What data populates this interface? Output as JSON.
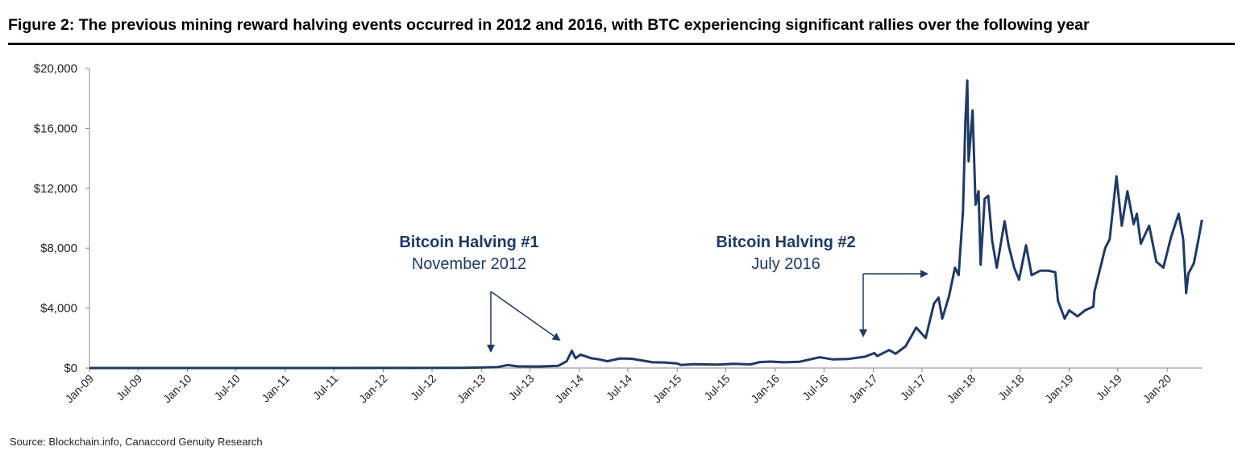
{
  "figure": {
    "title": "Figure 2: The previous mining reward halving events occurred in 2012 and 2016, with BTC experiencing significant rallies over the following year",
    "source": "Source: Blockchain.info, Canaccord Genuity Research"
  },
  "annotations": [
    {
      "title": "Bitcoin Halving #1",
      "subtitle": "November 2012"
    },
    {
      "title": "Bitcoin Halving #2",
      "subtitle": "July 2016"
    }
  ],
  "chart_data": {
    "type": "line",
    "title": "",
    "xlabel": "",
    "ylabel": "",
    "ylim": [
      0,
      20000
    ],
    "yticks": [
      0,
      4000,
      8000,
      12000,
      16000,
      20000
    ],
    "ytick_labels": [
      "$0",
      "$4,000",
      "$8,000",
      "$12,000",
      "$16,000",
      "$20,000"
    ],
    "xticks": [
      "Jan-09",
      "Jul-09",
      "Jan-10",
      "Jul-10",
      "Jan-11",
      "Jul-11",
      "Jan-12",
      "Jul-12",
      "Jan-13",
      "Jul-13",
      "Jan-14",
      "Jul-14",
      "Jan-15",
      "Jul-15",
      "Jan-16",
      "Jul-16",
      "Jan-17",
      "Jul-17",
      "Jan-18",
      "Jul-18",
      "Jan-19",
      "Jul-19",
      "Jan-20"
    ],
    "grid": false,
    "legend": "none",
    "line_color": "#1f3a63",
    "series": [
      {
        "points": [
          [
            "2009-01-01",
            0
          ],
          [
            "2010-01-01",
            0
          ],
          [
            "2011-01-01",
            0
          ],
          [
            "2012-01-01",
            5
          ],
          [
            "2012-11-01",
            11
          ],
          [
            "2013-03-01",
            60
          ],
          [
            "2013-04-10",
            200
          ],
          [
            "2013-05-15",
            115
          ],
          [
            "2013-08-01",
            100
          ],
          [
            "2013-10-15",
            150
          ],
          [
            "2013-11-15",
            450
          ],
          [
            "2013-12-04",
            1150
          ],
          [
            "2013-12-18",
            650
          ],
          [
            "2014-01-05",
            900
          ],
          [
            "2014-02-15",
            650
          ],
          [
            "2014-03-15",
            580
          ],
          [
            "2014-04-15",
            450
          ],
          [
            "2014-06-01",
            640
          ],
          [
            "2014-07-15",
            620
          ],
          [
            "2014-09-01",
            480
          ],
          [
            "2014-10-01",
            380
          ],
          [
            "2014-11-15",
            370
          ],
          [
            "2015-01-01",
            300
          ],
          [
            "2015-01-15",
            200
          ],
          [
            "2015-03-01",
            260
          ],
          [
            "2015-06-01",
            230
          ],
          [
            "2015-08-01",
            280
          ],
          [
            "2015-10-01",
            240
          ],
          [
            "2015-11-05",
            400
          ],
          [
            "2015-12-15",
            430
          ],
          [
            "2016-02-01",
            380
          ],
          [
            "2016-04-01",
            420
          ],
          [
            "2016-06-15",
            720
          ],
          [
            "2016-08-01",
            580
          ],
          [
            "2016-10-01",
            610
          ],
          [
            "2016-12-01",
            760
          ],
          [
            "2017-01-05",
            1000
          ],
          [
            "2017-01-15",
            800
          ],
          [
            "2017-03-01",
            1200
          ],
          [
            "2017-03-25",
            950
          ],
          [
            "2017-05-01",
            1450
          ],
          [
            "2017-06-10",
            2700
          ],
          [
            "2017-07-15",
            2000
          ],
          [
            "2017-08-15",
            4300
          ],
          [
            "2017-09-01",
            4700
          ],
          [
            "2017-09-15",
            3300
          ],
          [
            "2017-10-10",
            4800
          ],
          [
            "2017-11-01",
            6700
          ],
          [
            "2017-11-15",
            6200
          ],
          [
            "2017-12-01",
            10500
          ],
          [
            "2017-12-10",
            16500
          ],
          [
            "2017-12-17",
            19200
          ],
          [
            "2017-12-22",
            13800
          ],
          [
            "2018-01-06",
            17200
          ],
          [
            "2018-01-17",
            10900
          ],
          [
            "2018-01-28",
            11800
          ],
          [
            "2018-02-05",
            6900
          ],
          [
            "2018-02-20",
            11300
          ],
          [
            "2018-03-05",
            11500
          ],
          [
            "2018-03-20",
            8500
          ],
          [
            "2018-04-06",
            6700
          ],
          [
            "2018-05-05",
            9800
          ],
          [
            "2018-05-20",
            8200
          ],
          [
            "2018-06-10",
            6700
          ],
          [
            "2018-06-28",
            5900
          ],
          [
            "2018-07-24",
            8200
          ],
          [
            "2018-08-14",
            6200
          ],
          [
            "2018-09-15",
            6500
          ],
          [
            "2018-10-15",
            6500
          ],
          [
            "2018-11-10",
            6400
          ],
          [
            "2018-11-20",
            4500
          ],
          [
            "2018-12-15",
            3300
          ],
          [
            "2019-01-01",
            3850
          ],
          [
            "2019-02-01",
            3450
          ],
          [
            "2019-03-01",
            3850
          ],
          [
            "2019-04-01",
            4100
          ],
          [
            "2019-04-05",
            5100
          ],
          [
            "2019-05-15",
            8000
          ],
          [
            "2019-06-01",
            8600
          ],
          [
            "2019-06-26",
            12800
          ],
          [
            "2019-07-16",
            9500
          ],
          [
            "2019-08-06",
            11800
          ],
          [
            "2019-08-29",
            9600
          ],
          [
            "2019-09-10",
            10300
          ],
          [
            "2019-09-25",
            8300
          ],
          [
            "2019-10-26",
            9500
          ],
          [
            "2019-11-22",
            7100
          ],
          [
            "2019-12-18",
            6700
          ],
          [
            "2020-01-15",
            8700
          ],
          [
            "2020-02-13",
            10300
          ],
          [
            "2020-03-01",
            8600
          ],
          [
            "2020-03-12",
            5000
          ],
          [
            "2020-03-20",
            6300
          ],
          [
            "2020-04-10",
            7000
          ],
          [
            "2020-04-29",
            8800
          ],
          [
            "2020-05-10",
            9900
          ]
        ]
      }
    ]
  }
}
